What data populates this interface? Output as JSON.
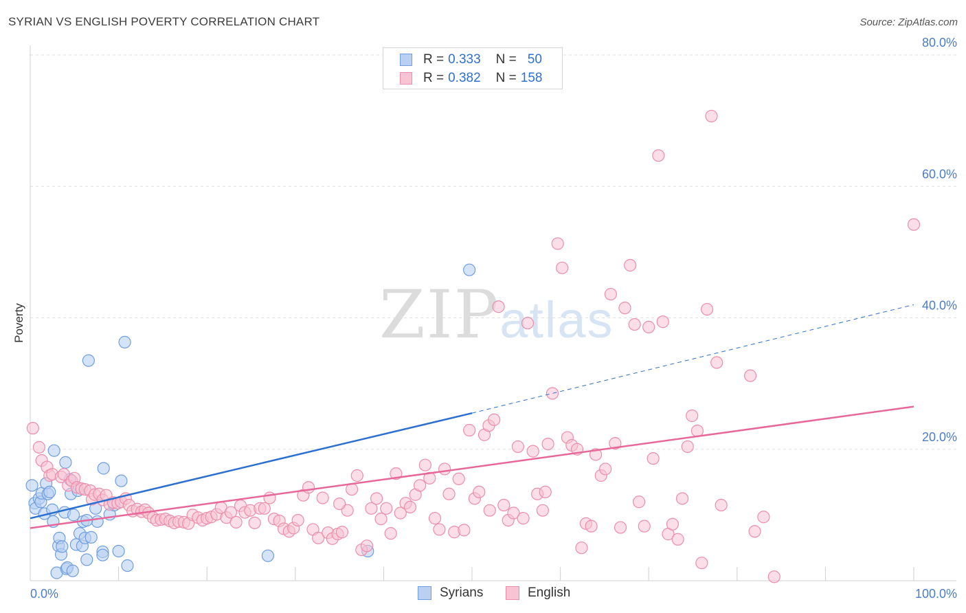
{
  "header": {
    "title": "SYRIAN VS ENGLISH POVERTY CORRELATION CHART",
    "source": "Source: ZipAtlas.com"
  },
  "watermark": {
    "part1": "ZIP",
    "part2": "atlas"
  },
  "legend_top": {
    "rows": [
      {
        "r_label": "R =",
        "r_value": "0.333",
        "n_label": "N =",
        "n_value": "50"
      },
      {
        "r_label": "R =",
        "r_value": "0.382",
        "n_label": "N =",
        "n_value": "158"
      }
    ]
  },
  "legend_bottom": {
    "items": [
      "Syrians",
      "English"
    ]
  },
  "colors": {
    "syrians_fill": "#b9d0f2",
    "syrians_stroke": "#6e9ee0",
    "syrians_line": "#2b6fd1",
    "english_fill": "#f8c3d3",
    "english_stroke": "#ec8dab",
    "english_line": "#e8679a",
    "grid": "#e0e0e0",
    "tick_label": "#4a7cc9"
  },
  "chart_data": {
    "type": "scatter",
    "title": "SYRIAN VS ENGLISH POVERTY CORRELATION CHART",
    "xlabel": "",
    "ylabel": "Poverty",
    "xlim": [
      0,
      100
    ],
    "ylim": [
      0,
      80
    ],
    "x_tick_labels": [
      "0.0%",
      "100.0%"
    ],
    "y_ticks": [
      20,
      40,
      60,
      80
    ],
    "y_tick_labels": [
      "20.0%",
      "40.0%",
      "60.0%",
      "80.0%"
    ],
    "series": [
      {
        "name": "Syrians",
        "R": 0.333,
        "N": 50,
        "trend": {
          "x0": 0,
          "y0": 9.5,
          "x1": 50,
          "y1": 25.5,
          "dashed_to_x": 100,
          "dashed_to_y": 42.0
        },
        "points": [
          [
            0.2,
            14.5
          ],
          [
            0.5,
            11.8
          ],
          [
            0.6,
            11.0
          ],
          [
            1.0,
            12.5
          ],
          [
            1.2,
            12.0
          ],
          [
            1.3,
            13.3
          ],
          [
            1.8,
            14.8
          ],
          [
            1.6,
            10.2
          ],
          [
            2.0,
            13.2
          ],
          [
            2.2,
            13.5
          ],
          [
            2.5,
            10.8
          ],
          [
            2.6,
            9.0
          ],
          [
            2.7,
            19.8
          ],
          [
            3.0,
            1.2
          ],
          [
            3.2,
            5.3
          ],
          [
            3.3,
            6.5
          ],
          [
            3.5,
            4.0
          ],
          [
            3.6,
            5.2
          ],
          [
            3.9,
            10.4
          ],
          [
            4.0,
            18.0
          ],
          [
            4.1,
            1.8
          ],
          [
            4.2,
            2.0
          ],
          [
            4.5,
            15.4
          ],
          [
            4.6,
            13.2
          ],
          [
            4.8,
            1.5
          ],
          [
            4.9,
            10.0
          ],
          [
            5.2,
            5.5
          ],
          [
            5.4,
            13.7
          ],
          [
            5.6,
            7.2
          ],
          [
            5.9,
            5.3
          ],
          [
            6.0,
            9.0
          ],
          [
            6.2,
            6.5
          ],
          [
            6.4,
            3.2
          ],
          [
            6.6,
            33.5
          ],
          [
            6.9,
            6.6
          ],
          [
            7.4,
            11.0
          ],
          [
            7.6,
            9.0
          ],
          [
            8.2,
            4.4
          ],
          [
            8.3,
            17.1
          ],
          [
            9.0,
            10.1
          ],
          [
            9.5,
            11.5
          ],
          [
            10.0,
            4.5
          ],
          [
            10.3,
            15.2
          ],
          [
            10.7,
            36.3
          ],
          [
            11.0,
            2.3
          ],
          [
            26.9,
            3.8
          ],
          [
            38.2,
            4.5
          ],
          [
            49.7,
            47.3
          ],
          [
            8.2,
            3.9
          ],
          [
            6.4,
            9.2
          ]
        ]
      },
      {
        "name": "English",
        "R": 0.382,
        "N": 158,
        "trend": {
          "x0": 0,
          "y0": 8.0,
          "x1": 100,
          "y1": 26.5
        },
        "points": [
          [
            0.3,
            23.2
          ],
          [
            1.0,
            20.3
          ],
          [
            1.3,
            18.3
          ],
          [
            1.9,
            17.3
          ],
          [
            2.2,
            16.0
          ],
          [
            2.5,
            16.2
          ],
          [
            3.5,
            15.8
          ],
          [
            3.8,
            16.2
          ],
          [
            4.3,
            14.5
          ],
          [
            4.7,
            15.2
          ],
          [
            5.0,
            15.6
          ],
          [
            5.3,
            14.2
          ],
          [
            5.8,
            14.0
          ],
          [
            6.2,
            13.9
          ],
          [
            6.8,
            13.7
          ],
          [
            7.0,
            12.4
          ],
          [
            7.3,
            13.1
          ],
          [
            7.8,
            13.2
          ],
          [
            8.2,
            12.3
          ],
          [
            8.6,
            13.0
          ],
          [
            9.0,
            11.6
          ],
          [
            9.4,
            11.9
          ],
          [
            9.9,
            11.8
          ],
          [
            10.3,
            12.0
          ],
          [
            10.8,
            12.5
          ],
          [
            11.2,
            11.5
          ],
          [
            11.6,
            10.6
          ],
          [
            12.1,
            10.9
          ],
          [
            12.6,
            10.5
          ],
          [
            13.0,
            10.8
          ],
          [
            13.4,
            10.3
          ],
          [
            13.9,
            9.6
          ],
          [
            14.3,
            9.2
          ],
          [
            14.8,
            9.3
          ],
          [
            15.3,
            9.4
          ],
          [
            15.8,
            9.1
          ],
          [
            16.3,
            8.8
          ],
          [
            16.8,
            9.0
          ],
          [
            17.4,
            8.9
          ],
          [
            17.9,
            8.7
          ],
          [
            18.4,
            10.0
          ],
          [
            19.0,
            9.6
          ],
          [
            19.5,
            9.2
          ],
          [
            20.0,
            9.5
          ],
          [
            20.5,
            9.7
          ],
          [
            21.1,
            10.1
          ],
          [
            21.6,
            11.1
          ],
          [
            22.2,
            9.6
          ],
          [
            22.7,
            10.4
          ],
          [
            23.3,
            8.9
          ],
          [
            23.8,
            11.4
          ],
          [
            24.3,
            10.4
          ],
          [
            24.9,
            10.7
          ],
          [
            25.4,
            8.8
          ],
          [
            26.0,
            11.0
          ],
          [
            26.5,
            11.0
          ],
          [
            27.1,
            12.6
          ],
          [
            27.6,
            9.4
          ],
          [
            28.2,
            9.1
          ],
          [
            28.7,
            7.9
          ],
          [
            29.3,
            7.5
          ],
          [
            29.8,
            8.0
          ],
          [
            30.3,
            9.2
          ],
          [
            30.9,
            13.0
          ],
          [
            31.5,
            14.2
          ],
          [
            32.0,
            7.8
          ],
          [
            32.6,
            6.5
          ],
          [
            33.1,
            12.6
          ],
          [
            33.7,
            7.3
          ],
          [
            34.2,
            6.4
          ],
          [
            34.8,
            7.1
          ],
          [
            35.3,
            7.4
          ],
          [
            35.9,
            10.7
          ],
          [
            36.4,
            13.9
          ],
          [
            37.0,
            16.0
          ],
          [
            37.5,
            4.7
          ],
          [
            38.1,
            5.3
          ],
          [
            38.6,
            11.0
          ],
          [
            39.2,
            12.5
          ],
          [
            39.7,
            9.4
          ],
          [
            40.3,
            11.0
          ],
          [
            40.8,
            7.2
          ],
          [
            41.4,
            16.3
          ],
          [
            41.9,
            10.3
          ],
          [
            42.5,
            11.8
          ],
          [
            43.0,
            11.2
          ],
          [
            43.6,
            13.1
          ],
          [
            44.1,
            14.5
          ],
          [
            44.7,
            17.6
          ],
          [
            45.2,
            15.6
          ],
          [
            45.8,
            9.5
          ],
          [
            46.3,
            7.8
          ],
          [
            46.9,
            17.0
          ],
          [
            47.4,
            13.2
          ],
          [
            48.0,
            7.4
          ],
          [
            48.5,
            15.5
          ],
          [
            49.1,
            7.7
          ],
          [
            49.7,
            22.9
          ],
          [
            50.3,
            12.5
          ],
          [
            50.8,
            13.5
          ],
          [
            51.4,
            22.2
          ],
          [
            51.9,
            23.6
          ],
          [
            52.5,
            24.5
          ],
          [
            53.0,
            41.7
          ],
          [
            53.6,
            11.5
          ],
          [
            54.1,
            9.2
          ],
          [
            54.7,
            10.3
          ],
          [
            55.2,
            20.4
          ],
          [
            55.8,
            9.5
          ],
          [
            56.3,
            39.2
          ],
          [
            56.9,
            19.7
          ],
          [
            57.4,
            13.2
          ],
          [
            58.0,
            10.7
          ],
          [
            58.6,
            20.8
          ],
          [
            59.1,
            28.5
          ],
          [
            59.7,
            51.3
          ],
          [
            60.2,
            47.6
          ],
          [
            60.8,
            21.8
          ],
          [
            61.3,
            20.6
          ],
          [
            61.9,
            20.0
          ],
          [
            62.4,
            5.0
          ],
          [
            62.9,
            8.7
          ],
          [
            63.5,
            8.3
          ],
          [
            64.0,
            19.2
          ],
          [
            64.6,
            16.0
          ],
          [
            65.1,
            17.0
          ],
          [
            65.7,
            43.6
          ],
          [
            66.2,
            20.9
          ],
          [
            66.8,
            8.1
          ],
          [
            67.3,
            41.5
          ],
          [
            67.9,
            48.0
          ],
          [
            68.4,
            39.0
          ],
          [
            68.9,
            12.0
          ],
          [
            69.5,
            8.3
          ],
          [
            70.0,
            38.6
          ],
          [
            70.5,
            18.6
          ],
          [
            71.1,
            64.7
          ],
          [
            71.6,
            39.4
          ],
          [
            72.2,
            7.1
          ],
          [
            72.7,
            8.6
          ],
          [
            73.3,
            6.3
          ],
          [
            73.8,
            12.5
          ],
          [
            74.4,
            20.4
          ],
          [
            74.9,
            25.1
          ],
          [
            75.5,
            22.8
          ],
          [
            76.0,
            2.7
          ],
          [
            76.6,
            41.3
          ],
          [
            77.1,
            70.7
          ],
          [
            77.7,
            33.2
          ],
          [
            78.2,
            11.5
          ],
          [
            81.5,
            31.2
          ],
          [
            82.0,
            7.5
          ],
          [
            83.0,
            9.7
          ],
          [
            84.2,
            0.6
          ],
          [
            100.0,
            54.2
          ],
          [
            35.0,
            11.7
          ],
          [
            52.0,
            10.7
          ],
          [
            58.3,
            13.5
          ]
        ]
      }
    ]
  }
}
